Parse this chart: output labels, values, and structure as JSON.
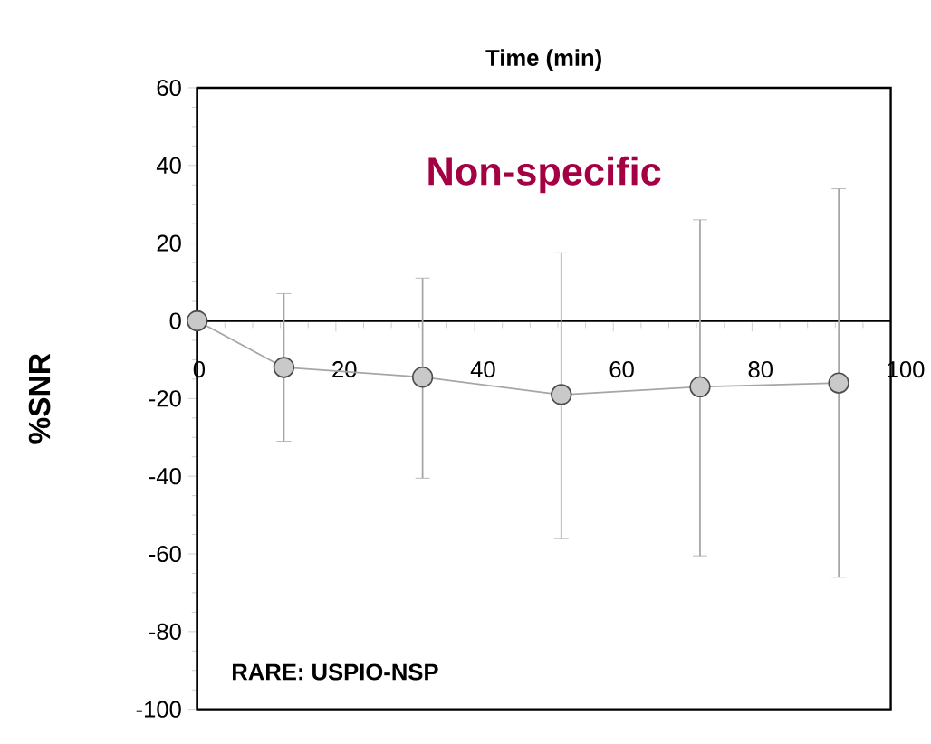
{
  "chart_data": {
    "type": "line",
    "xlabel": "Time (min)",
    "ylabel": "%SNR",
    "x": [
      0,
      12.5,
      32.5,
      52.5,
      72.5,
      92.5
    ],
    "values": [
      0,
      -12,
      -14.5,
      -19,
      -17,
      -16
    ],
    "errors": [
      null,
      [
        -31,
        7
      ],
      [
        -40.5,
        11
      ],
      [
        -56,
        17.5
      ],
      [
        -60.5,
        26
      ],
      [
        -66,
        34
      ]
    ],
    "color": "#a6a6a6",
    "marker": "circle",
    "line_style": "solid",
    "xlim": [
      0,
      100
    ],
    "xticks": [
      0,
      20,
      40,
      60,
      80,
      100
    ],
    "ylim": [
      -100,
      60
    ],
    "yticks": [
      -100,
      -80,
      -60,
      -40,
      -20,
      0,
      20,
      40,
      60
    ],
    "annotations": [
      "Non-specific",
      "RARE: USPIO-NSP"
    ],
    "grid": false
  }
}
